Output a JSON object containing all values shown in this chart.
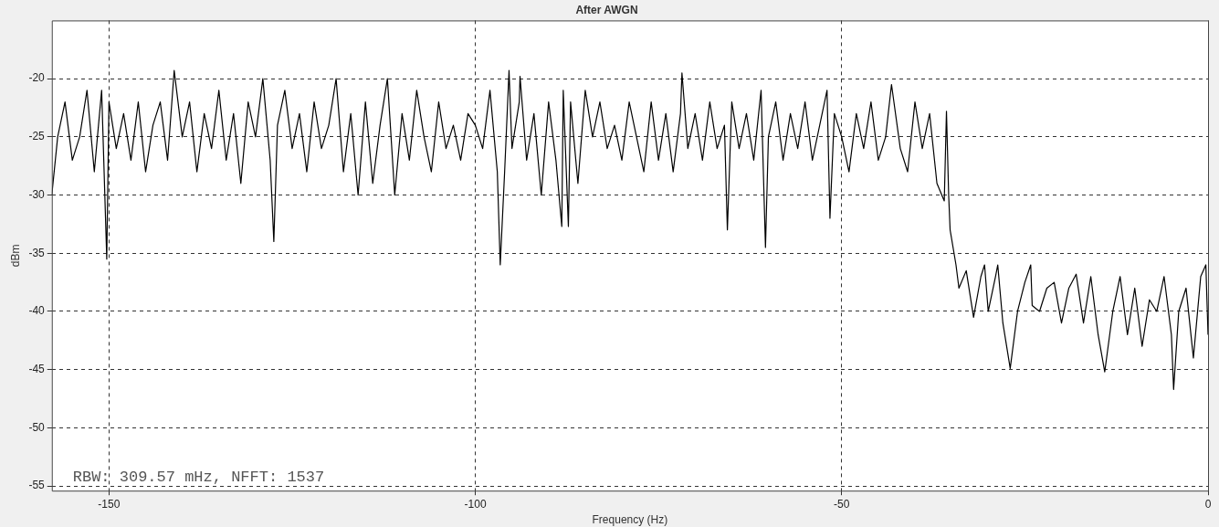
{
  "chart_data": {
    "type": "line",
    "title": "After AWGN",
    "xlabel": "Frequency (Hz)",
    "ylabel": "dBm",
    "annotations": [
      "RBW: 309.57 mHz, NFFT: 1537"
    ],
    "x": [
      -157.8,
      -157,
      -156,
      -155,
      -154,
      -153,
      -152,
      -151,
      -150.3,
      -150,
      -149,
      -148,
      -147,
      -146,
      -145,
      -144,
      -143,
      -142,
      -141.1,
      -140,
      -139,
      -138,
      -137,
      -136,
      -135,
      -134,
      -133,
      -132,
      -131,
      -130,
      -129,
      -128,
      -127.5,
      -127,
      -126,
      -125,
      -124,
      -123,
      -122,
      -121,
      -120,
      -119,
      -118,
      -117,
      -116,
      -115,
      -114,
      -113,
      -112,
      -111,
      -110,
      -109,
      -108,
      -107,
      -106,
      -105,
      -104,
      -103,
      -102,
      -101,
      -100,
      -99,
      -98,
      -97,
      -96.6,
      -96,
      -95.4,
      -95,
      -94,
      -93.9,
      -93,
      -92,
      -91,
      -90,
      -89,
      -88.2,
      -88,
      -87.3,
      -87,
      -86,
      -85,
      -84,
      -83,
      -82,
      -81,
      -80,
      -79,
      -78,
      -77,
      -76,
      -75,
      -74,
      -73,
      -72,
      -71.8,
      -71,
      -70,
      -69,
      -68,
      -67,
      -66,
      -65.6,
      -65,
      -64,
      -63,
      -62,
      -61,
      -60.4,
      -60,
      -59,
      -58,
      -57,
      -56,
      -55,
      -54,
      -53,
      -52,
      -51.6,
      -51,
      -50,
      -49,
      -48,
      -47,
      -46,
      -45,
      -44,
      -43.2,
      -42,
      -41,
      -40,
      -39,
      -38,
      -37,
      -36,
      -35.7,
      -35.4,
      -35.2,
      -34.4,
      -34,
      -33,
      -32,
      -31,
      -30.5,
      -30,
      -29,
      -28.7,
      -28,
      -27,
      -26,
      -25,
      -24.2,
      -24,
      -23,
      -22,
      -21,
      -20,
      -19,
      -18,
      -17,
      -16,
      -15,
      -14.1,
      -13,
      -12,
      -11,
      -10,
      -9,
      -8,
      -7,
      -6,
      -5,
      -4.7,
      -4,
      -3,
      -2,
      -1,
      -0.3,
      0
    ],
    "series": [
      {
        "color": "#000000",
        "values": [
          -30,
          -25,
          -22,
          -27,
          -25,
          -21,
          -28,
          -21,
          -35.5,
          -22,
          -26,
          -23,
          -27,
          -22,
          -28,
          -24,
          -22,
          -27,
          -19.3,
          -25,
          -22,
          -28,
          -23,
          -26,
          -21,
          -27,
          -23,
          -29,
          -22,
          -25,
          -20,
          -27,
          -34,
          -24,
          -21,
          -26,
          -23,
          -28,
          -22,
          -26,
          -24,
          -20,
          -28,
          -23,
          -30,
          -22,
          -29,
          -24,
          -20,
          -30,
          -23,
          -27,
          -21,
          -25,
          -28,
          -22,
          -26,
          -24,
          -27,
          -23,
          -24,
          -26,
          -21,
          -28,
          -36,
          -28,
          -19.3,
          -26,
          -22,
          -19.8,
          -27,
          -23,
          -30,
          -22,
          -27,
          -32.7,
          -21,
          -32.7,
          -22,
          -29,
          -21,
          -25,
          -22,
          -26,
          -24,
          -27,
          -22,
          -25,
          -28,
          -22,
          -27,
          -23,
          -28,
          -23,
          -19.5,
          -26,
          -23,
          -27,
          -22,
          -26,
          -24,
          -33,
          -22,
          -26,
          -23,
          -27,
          -21,
          -34.5,
          -25,
          -22,
          -27,
          -23,
          -26,
          -22,
          -27,
          -24,
          -21,
          -32,
          -23,
          -25,
          -28,
          -23,
          -26,
          -22,
          -27,
          -25,
          -20.5,
          -26,
          -28,
          -22,
          -26,
          -23,
          -29,
          -30.5,
          -22.8,
          -30,
          -33,
          -36,
          -38,
          -36.5,
          -40.5,
          -37,
          -36,
          -40,
          -37,
          -36,
          -41,
          -44.9,
          -40,
          -37.5,
          -36,
          -39.5,
          -40,
          -38,
          -37.5,
          -41,
          -38,
          -36.8,
          -41,
          -37,
          -42,
          -45.2,
          -40,
          -37,
          -42,
          -38,
          -43,
          -39,
          -40,
          -37,
          -42,
          -46.7,
          -40,
          -38,
          -44,
          -37,
          -36,
          -42
        ]
      }
    ],
    "xlim": [
      -157.8,
      0
    ],
    "xticks": [
      -150,
      -100,
      -50,
      0
    ],
    "ylim": [
      -55.4,
      -15
    ],
    "yticks": [
      -20,
      -25,
      -30,
      -35,
      -40,
      -45,
      -50,
      -55
    ],
    "grid": true,
    "legend": false,
    "marker": "none",
    "line_style": "solid"
  }
}
